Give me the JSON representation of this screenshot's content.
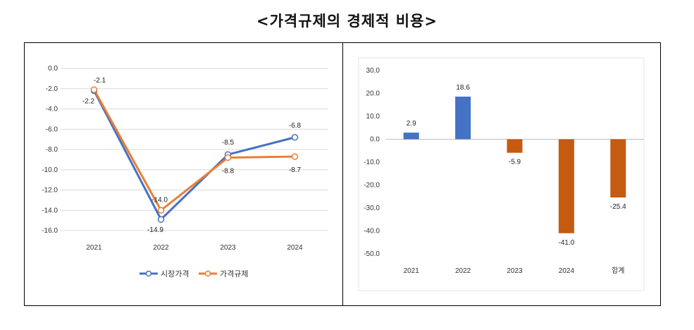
{
  "title": "<가격규제의 경제적 비용>",
  "chart_data": [
    {
      "type": "line",
      "categories": [
        "2021",
        "2022",
        "2023",
        "2024"
      ],
      "series": [
        {
          "name": "시장가격",
          "values": [
            -2.2,
            -14.9,
            -8.5,
            -6.8
          ],
          "color": "#4472C4"
        },
        {
          "name": "가격규제",
          "values": [
            -2.1,
            -14.0,
            -8.8,
            -8.7
          ],
          "color": "#ED7D31"
        }
      ],
      "data_labels": {
        "시장가격": [
          "-2.2",
          "-14.9",
          "-8.5",
          "-6.8"
        ],
        "가격규제": [
          "-2.1",
          "-14.0",
          "-8.8",
          "-8.7"
        ]
      },
      "yticks": [
        "0.0",
        "-2.0",
        "-4.0",
        "-6.0",
        "-8.0",
        "-10.0",
        "-12.0",
        "-14.0",
        "-16.0"
      ],
      "ylim": [
        -16,
        0
      ],
      "legend_position": "bottom",
      "grid": "horizontal"
    },
    {
      "type": "bar",
      "categories": [
        "2021",
        "2022",
        "2023",
        "2024",
        "합계"
      ],
      "values": [
        2.9,
        18.6,
        -5.9,
        -41.0,
        -25.4
      ],
      "data_labels": [
        "2.9",
        "18.6",
        "-5.9",
        "-41.0",
        "-25.4"
      ],
      "colors": [
        "#4472C4",
        "#4472C4",
        "#C55A11",
        "#C55A11",
        "#C55A11"
      ],
      "yticks": [
        "30.0",
        "20.0",
        "10.0",
        "0.0",
        "-10.0",
        "-20.0",
        "-30.0",
        "-40.0",
        "-50.0"
      ],
      "ylim": [
        -50,
        30
      ],
      "grid": "none"
    }
  ]
}
